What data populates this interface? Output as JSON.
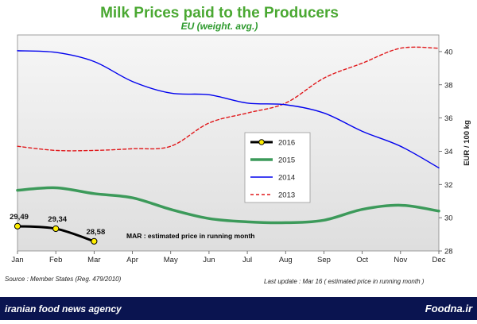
{
  "chart_data": {
    "type": "line",
    "title": "Milk Prices paid to the Producers",
    "subtitle": "EU (weight. avg.)",
    "ylabel": "EUR / 100 kg",
    "categories": [
      "Jan",
      "Feb",
      "Mar",
      "Apr",
      "May",
      "Jun",
      "Jul",
      "Aug",
      "Sep",
      "Oct",
      "Nov",
      "Dec"
    ],
    "ylim": [
      28,
      41
    ],
    "yticks": [
      28,
      30,
      32,
      34,
      36,
      38,
      40
    ],
    "grid": false,
    "legend_position": "center-right",
    "series": [
      {
        "name": "2016",
        "color": "#000000",
        "style": "solid-markers",
        "values": [
          29.49,
          29.34,
          28.58,
          null,
          null,
          null,
          null,
          null,
          null,
          null,
          null,
          null
        ],
        "labels": [
          "29,49",
          "29,34",
          "28,58"
        ]
      },
      {
        "name": "2015",
        "color": "#3c9a5a",
        "style": "solid-thick",
        "values": [
          31.65,
          31.8,
          31.45,
          31.2,
          30.5,
          29.95,
          29.75,
          29.7,
          29.85,
          30.5,
          30.75,
          30.4
        ]
      },
      {
        "name": "2014",
        "color": "#0000ee",
        "style": "solid",
        "values": [
          40.05,
          39.95,
          39.4,
          38.2,
          37.5,
          37.4,
          36.9,
          36.8,
          36.3,
          35.2,
          34.3,
          33.0
        ]
      },
      {
        "name": "2013",
        "color": "#e0181b",
        "style": "dashed",
        "values": [
          34.3,
          34.05,
          34.05,
          34.15,
          34.3,
          35.7,
          36.3,
          36.9,
          38.4,
          39.3,
          40.2,
          40.2
        ]
      }
    ],
    "annotation": "MAR :  estimated price in running month"
  },
  "footer": {
    "source": "Source : Member States (Reg. 479/2010)",
    "update": "Last update : Mar 16  ( estimated price in running month )"
  },
  "banner": {
    "left": "iranian food news agency",
    "right": "Foodna.ir",
    "bg": "#0a1450"
  }
}
